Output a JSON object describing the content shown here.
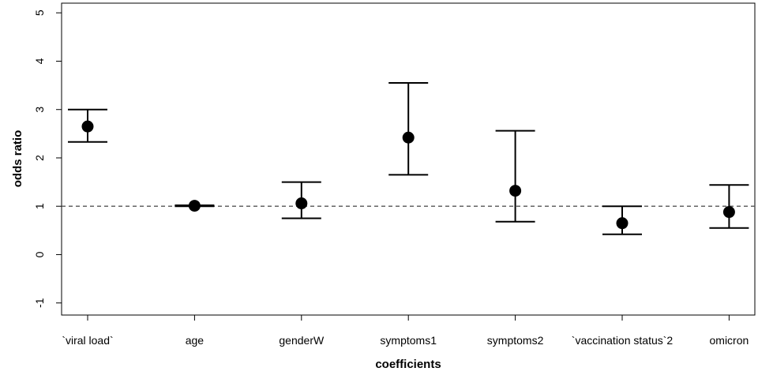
{
  "chart_data": {
    "type": "scatter",
    "title": "",
    "xlabel": "coefficients",
    "ylabel": "odds ratio",
    "ylim": [
      -1.25,
      5.2
    ],
    "yticks": [
      -1,
      0,
      1,
      2,
      3,
      4,
      5
    ],
    "reference_line": {
      "y": 1,
      "style": "dashed"
    },
    "grid": false,
    "colors": {
      "points": "#000000",
      "reference_line": "#555555"
    },
    "categories": [
      "`viral load`",
      "age",
      "genderW",
      "symptoms1",
      "symptoms2",
      "`vaccination status`2",
      "omicron"
    ],
    "estimate": [
      2.65,
      1.01,
      1.06,
      2.42,
      1.32,
      0.65,
      0.88
    ],
    "lower": [
      2.33,
      1.0,
      0.75,
      1.65,
      0.68,
      0.42,
      0.55
    ],
    "upper": [
      3.0,
      1.02,
      1.5,
      3.55,
      2.56,
      1.0,
      1.44
    ]
  }
}
